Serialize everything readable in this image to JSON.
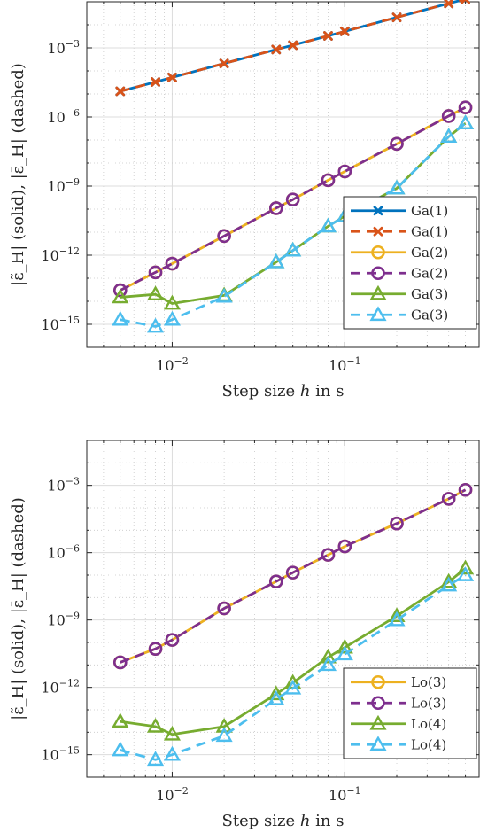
{
  "chart_data": [
    {
      "type": "line",
      "xscale": "log",
      "yscale": "log",
      "xlim": [
        0.0032,
        0.6
      ],
      "ylim": [
        1e-16,
        0.1
      ],
      "xlabel": "Step size h in s",
      "ylabel": "|ε̃_H| (solid), |ε̄_H| (dashed)",
      "grid": true,
      "legend_position": "bottom-right",
      "series": [
        {
          "name": "Ga(1)",
          "style": "solid",
          "marker": "x",
          "color": "#0072BD",
          "x": [
            0.005,
            0.008,
            0.01,
            0.02,
            0.04,
            0.05,
            0.08,
            0.1,
            0.2,
            0.4,
            0.5
          ],
          "y": [
            1.3e-05,
            3.3e-05,
            5.2e-05,
            0.00021,
            0.00085,
            0.0013,
            0.0033,
            0.0052,
            0.021,
            0.085,
            0.13
          ]
        },
        {
          "name": "Ga(1)",
          "style": "dashed",
          "marker": "x",
          "color": "#D95319",
          "x": [
            0.005,
            0.008,
            0.01,
            0.02,
            0.04,
            0.05,
            0.08,
            0.1,
            0.2,
            0.4,
            0.5
          ],
          "y": [
            1.3e-05,
            3.3e-05,
            5.2e-05,
            0.00021,
            0.00085,
            0.0013,
            0.0033,
            0.0052,
            0.021,
            0.085,
            0.13
          ]
        },
        {
          "name": "Ga(2)",
          "style": "solid",
          "marker": "o",
          "color": "#EDB120",
          "x": [
            0.005,
            0.008,
            0.01,
            0.02,
            0.04,
            0.05,
            0.08,
            0.1,
            0.2,
            0.4,
            0.5
          ],
          "y": [
            3e-14,
            1.8e-13,
            4.3e-13,
            6.8e-12,
            1.1e-10,
            2.6e-10,
            1.8e-09,
            4.3e-09,
            6.8e-08,
            1.1e-06,
            2.6e-06
          ]
        },
        {
          "name": "Ga(2)",
          "style": "dashed",
          "marker": "o",
          "color": "#7E2F8E",
          "x": [
            0.005,
            0.008,
            0.01,
            0.02,
            0.04,
            0.05,
            0.08,
            0.1,
            0.2,
            0.4,
            0.5
          ],
          "y": [
            3e-14,
            1.8e-13,
            4.3e-13,
            6.8e-12,
            1.1e-10,
            2.6e-10,
            1.8e-09,
            4.3e-09,
            6.8e-08,
            1.1e-06,
            2.6e-06
          ]
        },
        {
          "name": "Ga(3)",
          "style": "solid",
          "marker": "^",
          "color": "#77AC30",
          "x": [
            0.005,
            0.008,
            0.01,
            0.02,
            0.04,
            0.05,
            0.08,
            0.1,
            0.2,
            0.4,
            0.5
          ],
          "y": [
            1.5e-14,
            2e-14,
            8e-15,
            1.8e-14,
            5e-13,
            1.6e-12,
            1.8e-11,
            5e-11,
            8e-10,
            1.4e-07,
            5.3e-07
          ]
        },
        {
          "name": "Ga(3)",
          "style": "dashed",
          "marker": "^",
          "color": "#4DBEEE",
          "x": [
            0.005,
            0.008,
            0.01,
            0.02,
            0.04,
            0.05,
            0.08,
            0.1,
            0.2,
            0.4,
            0.5
          ],
          "y": [
            1.6e-15,
            8e-16,
            1.6e-15,
            1.6e-14,
            5e-13,
            1.6e-12,
            1.8e-11,
            5e-11,
            8e-10,
            1.4e-07,
            5.3e-07
          ]
        }
      ]
    },
    {
      "type": "line",
      "xscale": "log",
      "yscale": "log",
      "xlim": [
        0.0032,
        0.6
      ],
      "ylim": [
        1e-16,
        0.1
      ],
      "xlabel": "Step size h in s",
      "ylabel": "|ε̃_H| (solid), |ε̄_H| (dashed)",
      "grid": true,
      "legend_position": "bottom-right",
      "series": [
        {
          "name": "Lo(3)",
          "style": "solid",
          "marker": "o",
          "color": "#EDB120",
          "x": [
            0.005,
            0.008,
            0.01,
            0.02,
            0.04,
            0.05,
            0.08,
            0.1,
            0.2,
            0.4,
            0.5
          ],
          "y": [
            1.3e-11,
            5.2e-11,
            1.3e-10,
            3.3e-09,
            5.2e-08,
            1.3e-07,
            8e-07,
            1.9e-06,
            2e-05,
            0.00025,
            0.00063
          ]
        },
        {
          "name": "Lo(3)",
          "style": "dashed",
          "marker": "o",
          "color": "#7E2F8E",
          "x": [
            0.005,
            0.008,
            0.01,
            0.02,
            0.04,
            0.05,
            0.08,
            0.1,
            0.2,
            0.4,
            0.5
          ],
          "y": [
            1.3e-11,
            5.2e-11,
            1.3e-10,
            3.3e-09,
            5.2e-08,
            1.3e-07,
            8e-07,
            1.9e-06,
            2e-05,
            0.00025,
            0.00063
          ]
        },
        {
          "name": "Lo(4)",
          "style": "solid",
          "marker": "^",
          "color": "#77AC30",
          "x": [
            0.005,
            0.008,
            0.01,
            0.02,
            0.04,
            0.05,
            0.08,
            0.1,
            0.2,
            0.4,
            0.5
          ],
          "y": [
            3e-14,
            1.8e-14,
            8e-15,
            1.8e-14,
            5e-13,
            1.6e-12,
            2.2e-11,
            6e-11,
            1.5e-09,
            5e-08,
            2e-07
          ]
        },
        {
          "name": "Lo(4)",
          "style": "dashed",
          "marker": "^",
          "color": "#4DBEEE",
          "x": [
            0.005,
            0.008,
            0.01,
            0.02,
            0.04,
            0.05,
            0.08,
            0.1,
            0.2,
            0.4,
            0.5
          ],
          "y": [
            1.6e-15,
            6e-16,
            1e-15,
            7e-15,
            3e-13,
            9e-13,
            1e-11,
            3e-11,
            1e-09,
            3.5e-08,
            1e-07
          ]
        }
      ]
    }
  ],
  "axis_tick_labels": {
    "x": [
      {
        "base": "10",
        "exp": "−2",
        "value": 0.01
      },
      {
        "base": "10",
        "exp": "−1",
        "value": 0.1
      }
    ],
    "y": [
      {
        "base": "10",
        "exp": "−3",
        "value": 0.001
      },
      {
        "base": "10",
        "exp": "−6",
        "value": 1e-06
      },
      {
        "base": "10",
        "exp": "−9",
        "value": 1e-09
      },
      {
        "base": "10",
        "exp": "−12",
        "value": 1e-12
      },
      {
        "base": "10",
        "exp": "−15",
        "value": 1e-15
      }
    ]
  }
}
